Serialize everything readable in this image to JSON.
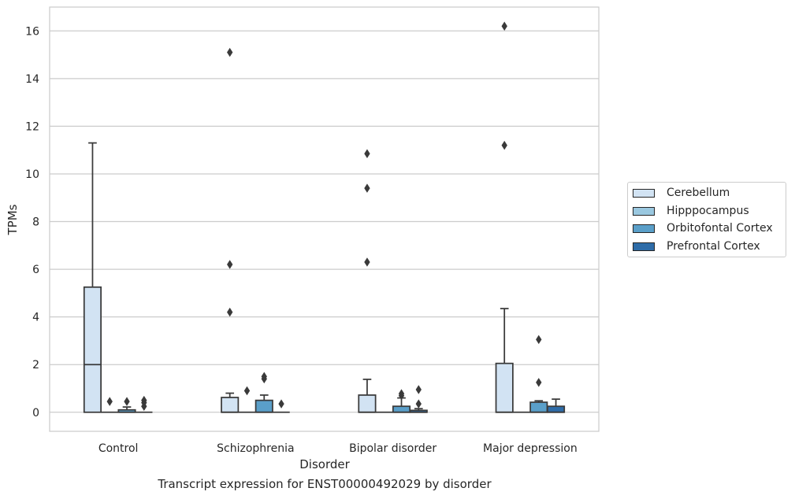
{
  "chart_data": {
    "type": "box",
    "xlabel": "Disorder",
    "ylabel": "TPMs",
    "caption": "Transcript expression for ENST00000492029 by disorder",
    "categories": [
      "Control",
      "Schizophrenia",
      "Bipolar disorder",
      "Major depression"
    ],
    "ylim": [
      -0.8,
      17
    ],
    "yticks": [
      0,
      2,
      4,
      6,
      8,
      10,
      12,
      14,
      16
    ],
    "grid": true,
    "legend_placement": "right",
    "series": [
      {
        "name": "Cerebellum",
        "color": "#d2e3f3",
        "boxes": [
          {
            "min": 0,
            "q1": 0,
            "median": 2.0,
            "q3": 5.25,
            "max": 11.3,
            "outliers": []
          },
          {
            "min": 0,
            "q1": 0,
            "median": 0,
            "q3": 0.62,
            "max": 0.8,
            "outliers": [
              4.2,
              6.2,
              15.1
            ]
          },
          {
            "min": 0,
            "q1": 0,
            "median": 0,
            "q3": 0.72,
            "max": 1.38,
            "outliers": [
              6.3,
              9.4,
              10.85
            ]
          },
          {
            "min": 0,
            "q1": 0,
            "median": 0,
            "q3": 2.05,
            "max": 4.35,
            "outliers": [
              11.2,
              16.2
            ]
          }
        ]
      },
      {
        "name": "Hipppocampus",
        "color": "#9ac8e0",
        "boxes": [
          {
            "min": 0,
            "q1": 0,
            "median": 0,
            "q3": 0,
            "max": 0,
            "outliers": [
              0.45
            ]
          },
          {
            "min": 0,
            "q1": 0,
            "median": 0,
            "q3": 0,
            "max": 0,
            "outliers": [
              0.9
            ]
          },
          {
            "min": 0,
            "q1": 0,
            "median": 0,
            "q3": 0,
            "max": 0,
            "outliers": []
          },
          {
            "min": 0,
            "q1": 0,
            "median": 0,
            "q3": 0,
            "max": 0,
            "outliers": []
          }
        ]
      },
      {
        "name": "Orbitofontal Cortex",
        "color": "#5a9fc9",
        "boxes": [
          {
            "min": 0,
            "q1": 0,
            "median": 0,
            "q3": 0.1,
            "max": 0.22,
            "outliers": [
              0.45
            ]
          },
          {
            "min": 0,
            "q1": 0,
            "median": 0,
            "q3": 0.5,
            "max": 0.72,
            "outliers": [
              1.4,
              1.5
            ]
          },
          {
            "min": 0,
            "q1": 0,
            "median": 0,
            "q3": 0.25,
            "max": 0.6,
            "outliers": [
              0.7,
              0.78
            ]
          },
          {
            "min": 0,
            "q1": 0,
            "median": 0,
            "q3": 0.42,
            "max": 0.48,
            "outliers": [
              1.25,
              3.05
            ]
          }
        ]
      },
      {
        "name": "Prefrontal Cortex",
        "color": "#2e6ca8",
        "boxes": [
          {
            "min": 0,
            "q1": 0,
            "median": 0,
            "q3": 0,
            "max": 0,
            "outliers": [
              0.25,
              0.4,
              0.5
            ]
          },
          {
            "min": 0,
            "q1": 0,
            "median": 0,
            "q3": 0,
            "max": 0,
            "outliers": [
              0.35
            ]
          },
          {
            "min": 0,
            "q1": 0,
            "median": 0,
            "q3": 0.08,
            "max": 0.15,
            "outliers": [
              0.35,
              0.95
            ]
          },
          {
            "min": 0,
            "q1": 0,
            "median": 0,
            "q3": 0.25,
            "max": 0.55,
            "outliers": []
          }
        ]
      }
    ]
  }
}
